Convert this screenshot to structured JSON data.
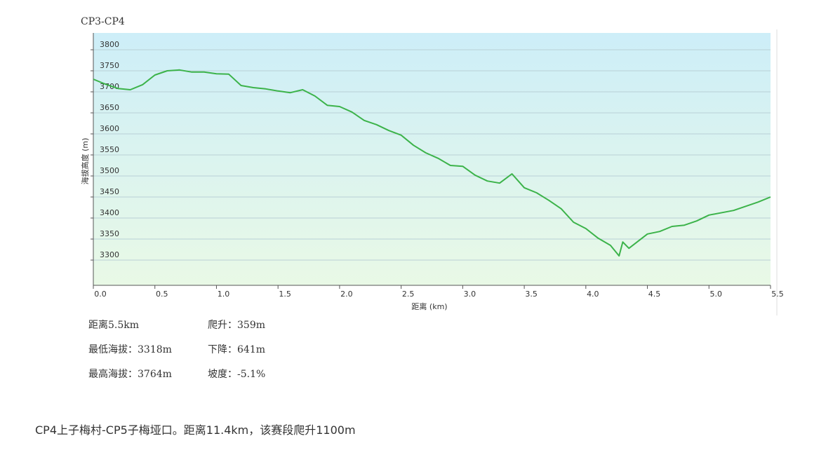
{
  "chart_data": {
    "type": "line",
    "title": "CP3-CP4",
    "x_label": "距离 (km)",
    "y_label": "海拔高度 (m)",
    "x": [
      0,
      0.1,
      0.2,
      0.3,
      0.4,
      0.5,
      0.6,
      0.7,
      0.8,
      0.9,
      1.0,
      1.1,
      1.2,
      1.3,
      1.4,
      1.5,
      1.6,
      1.7,
      1.8,
      1.9,
      2.0,
      2.1,
      2.2,
      2.3,
      2.4,
      2.5,
      2.6,
      2.7,
      2.8,
      2.9,
      3.0,
      3.1,
      3.2,
      3.3,
      3.4,
      3.5,
      3.6,
      3.7,
      3.8,
      3.9,
      4.0,
      4.1,
      4.2,
      4.27,
      4.3,
      4.35,
      4.5,
      4.6,
      4.7,
      4.8,
      4.9,
      5.0,
      5.2,
      5.3,
      5.4,
      5.5
    ],
    "series": [
      {
        "name": "海拔高度",
        "color": "#3cb34a",
        "values": [
          3730,
          3718,
          3708,
          3705,
          3717,
          3740,
          3750,
          3752,
          3747,
          3747,
          3743,
          3742,
          3715,
          3710,
          3707,
          3702,
          3698,
          3705,
          3690,
          3668,
          3665,
          3652,
          3632,
          3622,
          3608,
          3597,
          3573,
          3555,
          3542,
          3525,
          3523,
          3502,
          3488,
          3483,
          3505,
          3472,
          3460,
          3442,
          3422,
          3390,
          3375,
          3352,
          3335,
          3310,
          3343,
          3328,
          3362,
          3368,
          3380,
          3383,
          3393,
          3407,
          3418,
          3428,
          3438,
          3450
        ]
      }
    ],
    "xlim": [
      0,
      5.5
    ],
    "xticks": [
      {
        "value": 0,
        "label": "0.0"
      },
      0.5,
      {
        "value": 1,
        "label": "1.0"
      },
      1.5,
      {
        "value": 2,
        "label": "2.0"
      },
      2.5,
      {
        "value": 3,
        "label": "3.0"
      },
      3.5,
      {
        "value": 4,
        "label": "4.0"
      },
      4.5,
      {
        "value": 5,
        "label": "5.0"
      },
      5.5
    ],
    "ylim": [
      3240,
      3840
    ],
    "yticks": [
      3300,
      3350,
      3400,
      3450,
      3500,
      3550,
      3600,
      3650,
      3700,
      3750,
      3800
    ],
    "grid": true
  },
  "stats": [
    [
      "距离5.5km",
      "爬升：359m"
    ],
    [
      "最低海拔：3318m",
      "下降：641m"
    ],
    [
      "最高海拔：3764m",
      "坡度：-5.1%"
    ]
  ],
  "paragraph": "CP4上子梅村-CP5子梅垭口。距离11.4km，该赛段爬升1100m"
}
